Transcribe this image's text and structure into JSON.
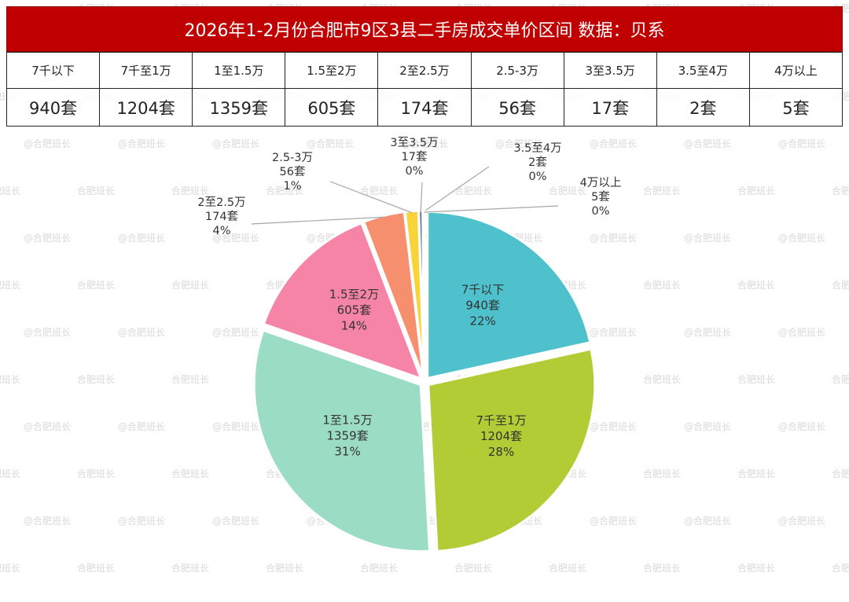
{
  "title": "2026年1-2月份合肥市9区3县二手房成交单价区间 数据：贝系",
  "watermark_text": "合肥班长",
  "watermark_handle": "@合肥班长",
  "table": {
    "headers": [
      "7千以下",
      "7千至1万",
      "1至1.5万",
      "1.5至2万",
      "2至2.5万",
      "2.5-3万",
      "3至3.5万",
      "3.5至4万",
      "4万以上"
    ],
    "values": [
      "940套",
      "1204套",
      "1359套",
      "605套",
      "174套",
      "56套",
      "17套",
      "2套",
      "5套"
    ]
  },
  "chart_data": {
    "type": "pie",
    "title": "",
    "start_angle_deg": 0,
    "direction": "clockwise",
    "exploded": true,
    "unit": "套",
    "slices": [
      {
        "label": "7千以下",
        "value": 940,
        "percent": "22%",
        "color": "#4fc1cc"
      },
      {
        "label": "7千至1万",
        "value": 1204,
        "percent": "28%",
        "color": "#b2cc35"
      },
      {
        "label": "1至1.5万",
        "value": 1359,
        "percent": "31%",
        "color": "#9bdcc5"
      },
      {
        "label": "1.5至2万",
        "value": 605,
        "percent": "14%",
        "color": "#f584a7"
      },
      {
        "label": "2至2.5万",
        "value": 174,
        "percent": "4%",
        "color": "#f58f6e"
      },
      {
        "label": "2.5-3万",
        "value": 56,
        "percent": "1%",
        "color": "#f8d43a"
      },
      {
        "label": "3至3.5万",
        "value": 17,
        "percent": "0%",
        "color": "#5b7f9c"
      },
      {
        "label": "3.5至4万",
        "value": 2,
        "percent": "0%",
        "color": "#7a9ac2"
      },
      {
        "label": "4万以上",
        "value": 5,
        "percent": "0%",
        "color": "#2f7d6a"
      }
    ]
  }
}
